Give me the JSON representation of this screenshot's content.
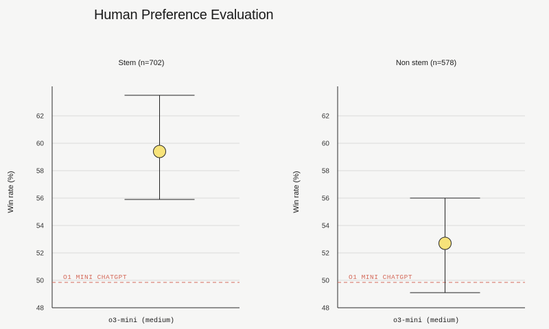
{
  "page": {
    "title": "Human Preference Evaluation"
  },
  "colors": {
    "background": "#f6f6f5",
    "axis": "#2b2b2b",
    "grid": "#d9d9d9",
    "errorbar": "#222222",
    "marker_fill": "#f7e37a",
    "marker_stroke": "#2a2a2a",
    "baseline": "#d46a5a"
  },
  "chart_data": [
    {
      "type": "scatter",
      "title": "Stem (n=702)",
      "xlabel": "",
      "ylabel": "Win rate (%)",
      "categories": [
        "o3-mini (medium)"
      ],
      "series": [
        {
          "values": [
            59.4
          ],
          "error_low": [
            55.9
          ],
          "error_high": [
            63.5
          ]
        }
      ],
      "ylim": [
        48,
        64
      ],
      "yticks": [
        48,
        50,
        52,
        54,
        56,
        58,
        60,
        62
      ],
      "grid": true,
      "reference_line": {
        "label": "O1 MINI CHATGPT",
        "value": 50
      }
    },
    {
      "type": "scatter",
      "title": "Non stem (n=578)",
      "xlabel": "",
      "ylabel": "Win rate (%)",
      "categories": [
        "o3-mini (medium)"
      ],
      "series": [
        {
          "values": [
            52.7
          ],
          "error_low": [
            49.1
          ],
          "error_high": [
            56.0
          ]
        }
      ],
      "ylim": [
        48,
        64
      ],
      "yticks": [
        48,
        50,
        52,
        54,
        56,
        58,
        60,
        62
      ],
      "grid": true,
      "reference_line": {
        "label": "O1 MINI CHATGPT",
        "value": 50
      }
    }
  ]
}
